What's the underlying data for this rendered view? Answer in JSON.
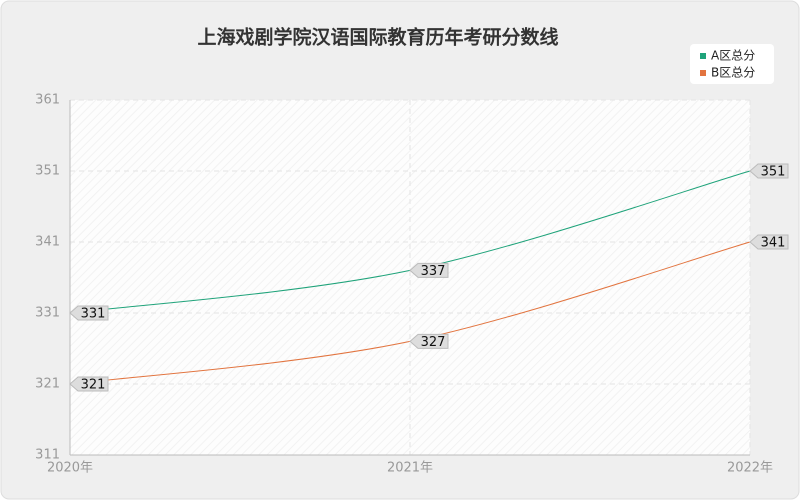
{
  "chart_data": {
    "type": "line",
    "title": "上海戏剧学院汉语国际教育历年考研分数线",
    "categories": [
      "2020年",
      "2021年",
      "2022年"
    ],
    "series": [
      {
        "name": "A区总分",
        "color": "#1fa37a",
        "values": [
          331,
          337,
          351
        ]
      },
      {
        "name": "B区总分",
        "color": "#e2743f",
        "values": [
          321,
          327,
          341
        ]
      }
    ],
    "ylim": [
      311,
      361
    ],
    "yticks": [
      311,
      321,
      331,
      341,
      351,
      361
    ],
    "grid": true,
    "legend": "top-right",
    "smooth": true
  }
}
